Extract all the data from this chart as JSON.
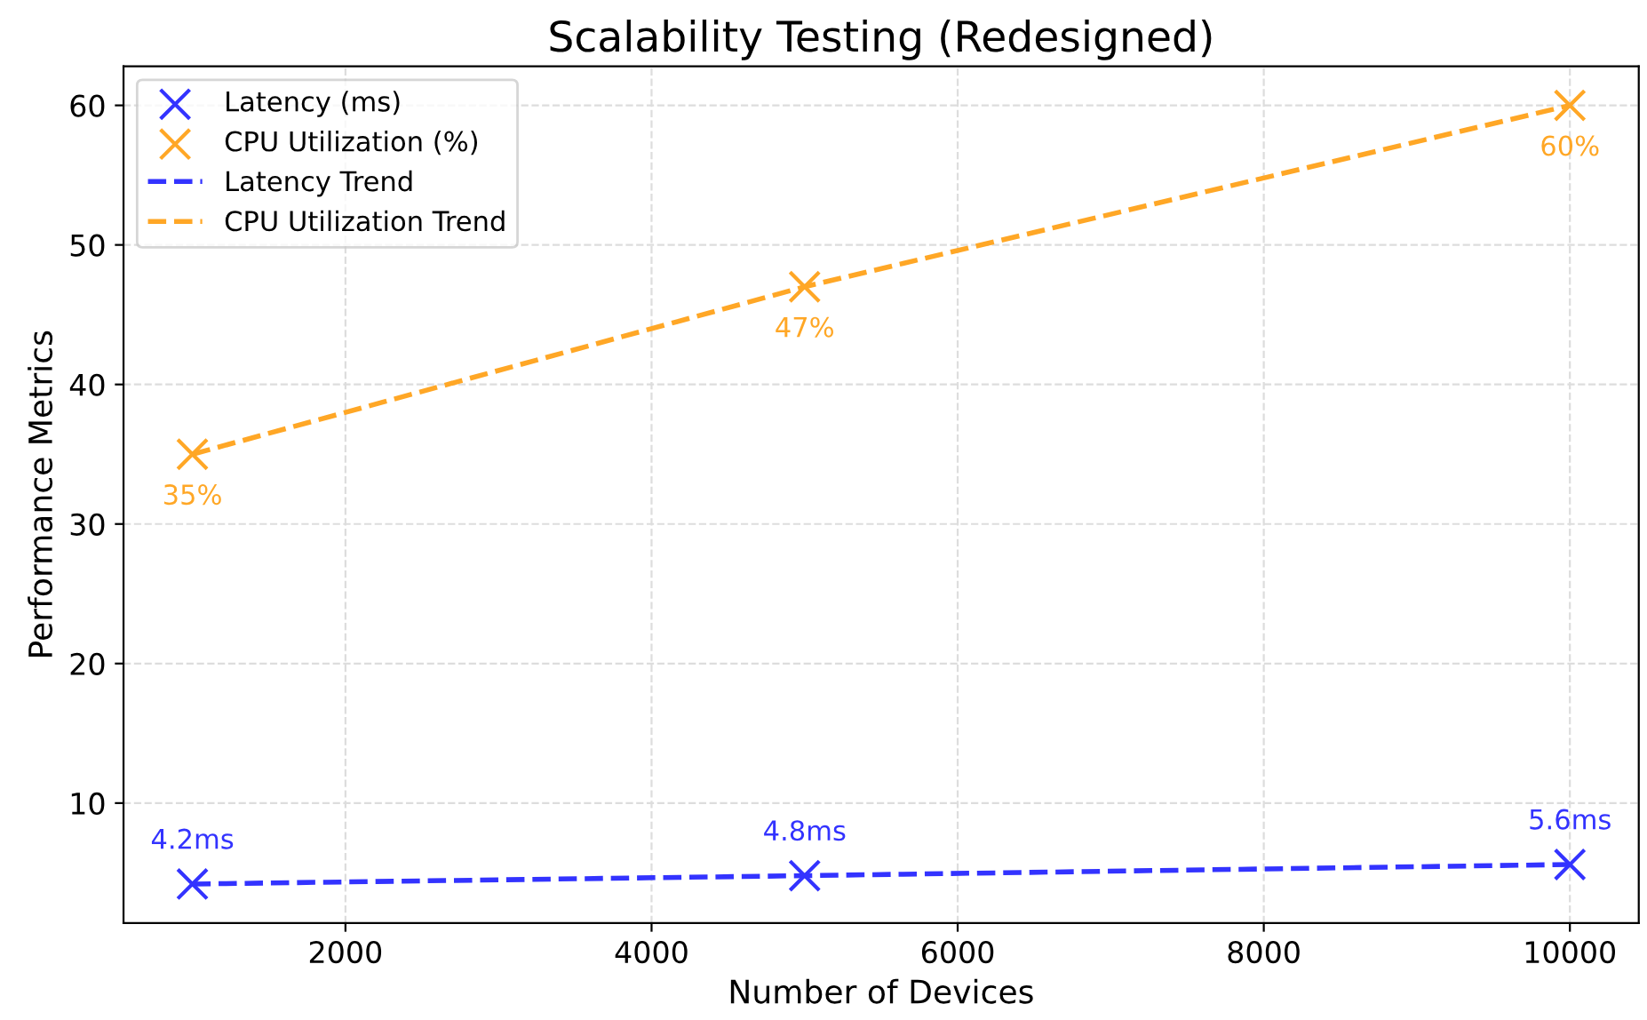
{
  "chart_data": {
    "type": "scatter",
    "title": "Scalability Testing (Redesigned)",
    "xlabel": "Number of Devices",
    "ylabel": "Performance Metrics",
    "xlim": [
      550,
      10450
    ],
    "xticks": [
      2000,
      4000,
      6000,
      8000,
      10000
    ],
    "ylim": [
      1.4,
      62.8
    ],
    "yticks": [
      10,
      20,
      30,
      40,
      50,
      60
    ],
    "grid": true,
    "legend": "top left",
    "series": [
      {
        "name": "Latency (ms)",
        "marker": "cross",
        "color": "#3333ff",
        "x": [
          1000,
          5000,
          10000
        ],
        "values": [
          4.2,
          4.8,
          5.6
        ],
        "value_labels": [
          "4.2ms",
          "4.8ms",
          "5.6ms"
        ]
      },
      {
        "name": "CPU Utilization (%)",
        "marker": "cross",
        "color": "#ffa726",
        "x": [
          1000,
          5000,
          10000
        ],
        "values": [
          35,
          47,
          60
        ],
        "value_labels": [
          "35%",
          "47%",
          "60%"
        ]
      },
      {
        "name": "Latency Trend",
        "type": "line",
        "line_style": "dashed",
        "color": "#3333ff",
        "x": [
          1000,
          5000,
          10000
        ],
        "values": [
          4.2,
          4.8,
          5.6
        ]
      },
      {
        "name": "CPU Utilization Trend",
        "type": "line",
        "line_style": "dashed",
        "color": "#ffa726",
        "x": [
          1000,
          5000,
          10000
        ],
        "values": [
          35,
          47,
          60
        ]
      }
    ]
  }
}
